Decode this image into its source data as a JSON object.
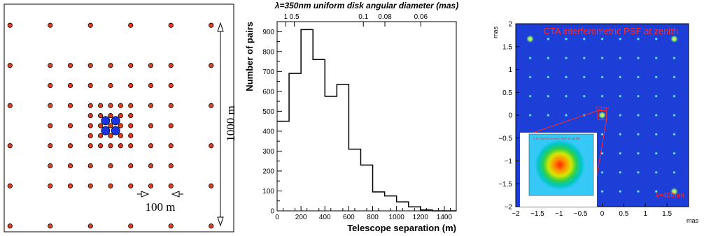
{
  "chart_data": [
    {
      "type": "scatter",
      "description_label": "",
      "scale_label_large": "1000 m",
      "scale_label_small": "100 m",
      "colors": {
        "telescope": "#e03c1e",
        "large_telescope": "#1a33e6",
        "frame": "#000000"
      },
      "large_telescopes_count": 4,
      "grid": {
        "outer_spacing": 190,
        "outer_range": [
          -475,
          475
        ],
        "middle_spacing": 95,
        "middle_range": [
          -285,
          285
        ],
        "inner_spacing": 47.5,
        "inner_range": [
          -95,
          95
        ]
      }
    },
    {
      "type": "bar",
      "title": "λ=350nm uniform disk angular diameter (mas)",
      "top_ticks": [
        "1",
        "0.5",
        "0.1",
        "0.08",
        "0.06"
      ],
      "top_tick_values": [
        72.2,
        144.4,
        721.9,
        902.4,
        1203.2
      ],
      "xlabel": "Telescope separation (m)",
      "ylabel": "Number of pairs",
      "xlim": [
        0,
        1500
      ],
      "ylim": [
        0,
        950
      ],
      "xticks": [
        0,
        200,
        400,
        600,
        800,
        1000,
        1200,
        1400
      ],
      "yticks": [
        0,
        100,
        200,
        300,
        400,
        500,
        600,
        700,
        800,
        900
      ],
      "bin_edges": [
        0,
        100,
        200,
        300,
        400,
        500,
        600,
        700,
        800,
        900,
        1000,
        1100,
        1200,
        1300,
        1400,
        1500
      ],
      "values": [
        450,
        690,
        910,
        760,
        575,
        635,
        310,
        230,
        95,
        75,
        45,
        20,
        5,
        0,
        0
      ]
    },
    {
      "type": "heatmap",
      "title": "CTA interferometric PSF at zenith",
      "wavelength_label": "λ=400nm",
      "box_label": "0.2mas",
      "inset_title": "CTA interferometric PSF at zenith",
      "xlabel": "mas",
      "ylabel": "mas",
      "xlim": [
        -2,
        2
      ],
      "ylim": [
        -2,
        2
      ],
      "xticks": [
        "−2",
        "−1.5",
        "−1",
        "−0.5",
        "0",
        "0.5",
        "1",
        "1.5"
      ],
      "xtick_values": [
        -2,
        -1.5,
        -1,
        -0.5,
        0,
        0.5,
        1,
        1.5
      ],
      "yticks": [
        "2",
        "1.5",
        "1",
        "0.5",
        "0",
        "−0.5",
        "−1",
        "−1.5",
        "−2"
      ],
      "ytick_values": [
        2,
        1.5,
        1,
        0.5,
        0,
        -0.5,
        -1,
        -1.5,
        -2
      ],
      "peak_spacing_mas": 0.4167,
      "major_peaks_mas": [
        [
          0,
          0
        ],
        [
          -1.667,
          1.667
        ],
        [
          1.667,
          1.667
        ],
        [
          -1.667,
          -1.667
        ],
        [
          1.667,
          -1.667
        ]
      ],
      "colors": {
        "background": "#1d3fd8",
        "minor_peak": "#4dd6f0",
        "major_peak": "#7ee06a",
        "title_text": "#ff2a2a",
        "zoom_lines": "#ff2a2a"
      }
    }
  ]
}
